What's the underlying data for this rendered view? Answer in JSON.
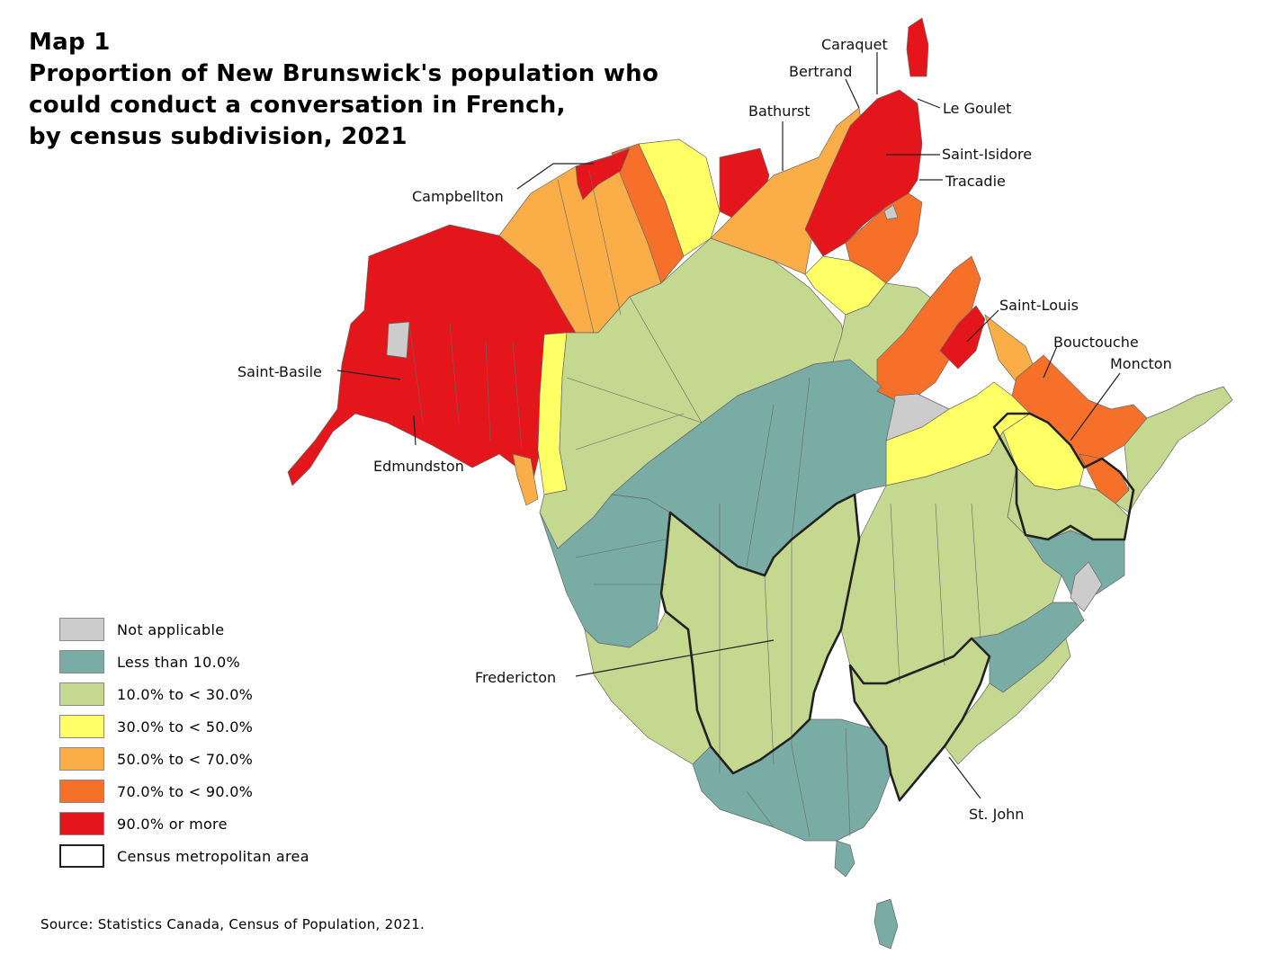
{
  "title": {
    "line1": "Map 1",
    "line2": "Proportion of New Brunswick's population who",
    "line3": "could conduct a conversation in French,",
    "line4": "by census subdivision, 2021"
  },
  "colors": {
    "not_applicable": "#cccccc",
    "lt10": "#7aaca6",
    "p10_30": "#c5d88f",
    "p30_50": "#ffff66",
    "p50_70": "#fbad48",
    "p70_90": "#f7702a",
    "p90": "#e4161c",
    "cma_border": "#222222"
  },
  "legend": [
    {
      "label": "Not applicable",
      "color": "#cccccc"
    },
    {
      "label": "Less than 10.0%",
      "color": "#7aaca6"
    },
    {
      "label": "10.0% to < 30.0%",
      "color": "#c5d88f"
    },
    {
      "label": "30.0% to < 50.0%",
      "color": "#ffff66"
    },
    {
      "label": "50.0% to < 70.0%",
      "color": "#fbad48"
    },
    {
      "label": "70.0% to < 90.0%",
      "color": "#f7702a"
    },
    {
      "label": "90.0% or more",
      "color": "#e4161c"
    },
    {
      "label": "Census metropolitan area",
      "color": "#ffffff"
    }
  ],
  "places": {
    "caraquet": "Caraquet",
    "bertrand": "Bertrand",
    "le_goulet": "Le Goulet",
    "bathurst": "Bathurst",
    "saint_isidore": "Saint-Isidore",
    "tracadie": "Tracadie",
    "campbellton": "Campbellton",
    "saint_louis": "Saint-Louis",
    "bouctouche": "Bouctouche",
    "moncton": "Moncton",
    "saint_basile": "Saint-Basile",
    "edmundston": "Edmundston",
    "fredericton": "Fredericton",
    "st_john": "St. John"
  },
  "source": "Source: Statistics Canada, Census of Population, 2021."
}
